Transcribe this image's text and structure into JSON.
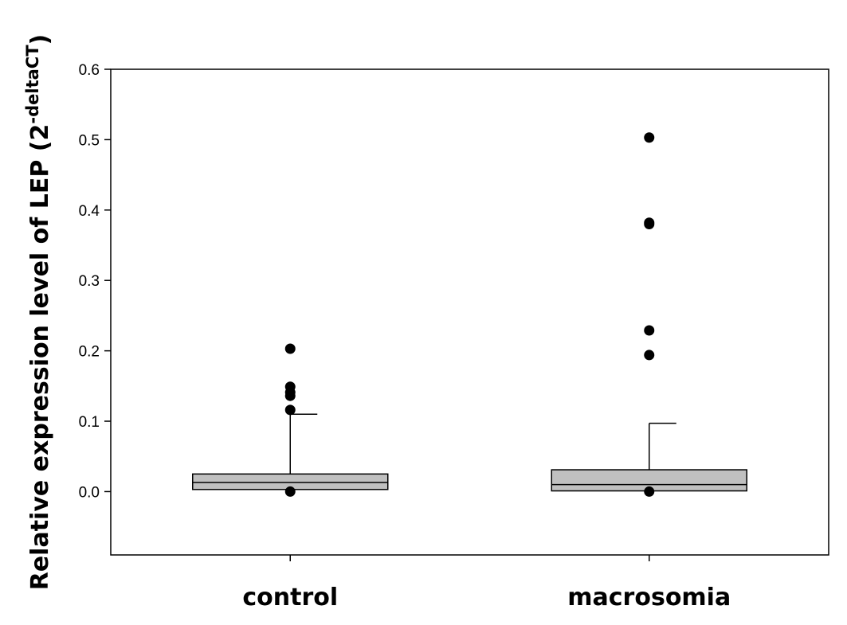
{
  "chart_data": {
    "type": "box",
    "ylabel": "Relative expression level of LEP (2",
    "ylabel_superscript": "-deltaCT",
    "ylabel_close": ")",
    "xlabel": "",
    "ylim": [
      -0.09,
      0.6
    ],
    "yticks": [
      "0.0",
      "0.1",
      "0.2",
      "0.3",
      "0.4",
      "0.5",
      "0.6"
    ],
    "ytick_values": [
      0.0,
      0.1,
      0.2,
      0.3,
      0.4,
      0.5,
      0.6
    ],
    "grid": false,
    "box_color": "#c0c0c0",
    "categories": [
      "control",
      "macrosomia"
    ],
    "boxes": [
      {
        "name": "control",
        "whisker_low": 0.003,
        "q1": 0.003,
        "median": 0.013,
        "q3": 0.025,
        "whisker_high": 0.11,
        "outliers": [
          0.0,
          0.116,
          0.136,
          0.141,
          0.149,
          0.203
        ]
      },
      {
        "name": "macrosomia",
        "whisker_low": 0.001,
        "q1": 0.001,
        "median": 0.01,
        "q3": 0.031,
        "whisker_high": 0.097,
        "outliers": [
          0.0,
          0.194,
          0.229,
          0.38,
          0.382,
          0.503
        ]
      }
    ]
  }
}
